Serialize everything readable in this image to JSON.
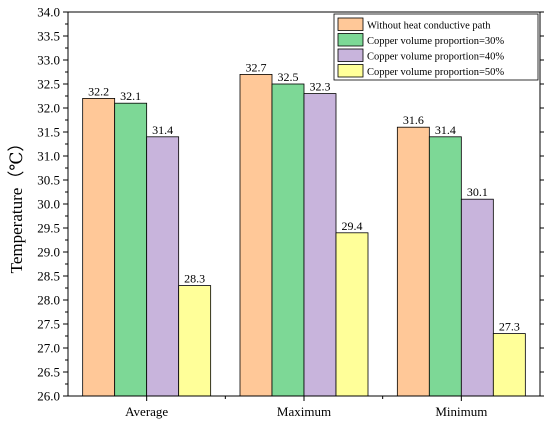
{
  "chart_data": {
    "type": "bar",
    "title": "",
    "xlabel": "",
    "ylabel": "Temperature（℃）",
    "categories": [
      "Average",
      "Maximum",
      "Minimum"
    ],
    "series": [
      {
        "name": "Without heat conductive path",
        "color": "#FFC898",
        "values": [
          32.2,
          32.7,
          31.6
        ],
        "labels": [
          "32.2",
          "32.7",
          "31.6"
        ]
      },
      {
        "name": "Copper volume proportion=30%",
        "color": "#7DD896",
        "values": [
          32.1,
          32.5,
          31.4
        ],
        "labels": [
          "32.1",
          "32.5",
          "31.4"
        ]
      },
      {
        "name": "Copper volume proportion=40%",
        "color": "#C8B4DC",
        "values": [
          31.4,
          32.3,
          30.1
        ],
        "labels": [
          "31.4",
          "32.3",
          "30.1"
        ]
      },
      {
        "name": "Copper volume proportion=50%",
        "color": "#FFFF99",
        "values": [
          28.3,
          29.4,
          27.3
        ],
        "labels": [
          "28.3",
          "29.4",
          "27.3"
        ]
      }
    ],
    "ylim": [
      26.0,
      34.0
    ],
    "yticks": [
      "26.0",
      "26.5",
      "27.0",
      "27.5",
      "28.0",
      "28.5",
      "29.0",
      "29.5",
      "30.0",
      "30.5",
      "31.0",
      "31.5",
      "32.0",
      "32.5",
      "33.0",
      "33.5",
      "34.0"
    ],
    "grid": false,
    "legend_position": "top-right"
  }
}
